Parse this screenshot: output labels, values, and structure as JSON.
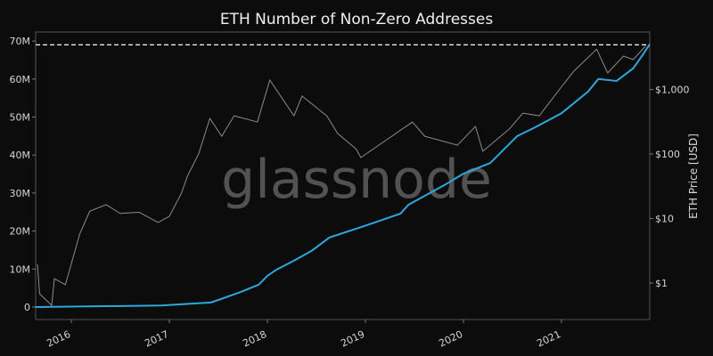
{
  "chart_data": {
    "type": "line",
    "title": "ETH Number of Non-Zero Addresses",
    "watermark": "glassnode",
    "xlabel": "",
    "x_ticks": [
      "2016",
      "2017",
      "2018",
      "2019",
      "2020",
      "2021"
    ],
    "y_left": {
      "label": "",
      "ticks": [
        "0",
        "10M",
        "20M",
        "30M",
        "40M",
        "50M",
        "60M",
        "70M"
      ],
      "tick_values": [
        0,
        10,
        20,
        30,
        40,
        50,
        60,
        70
      ],
      "unit": "millions",
      "range": [
        -3,
        73
      ]
    },
    "y_right": {
      "label": "ETH Price [USD]",
      "scale": "log",
      "ticks": [
        "$1",
        "$10",
        "$100",
        "$1,000"
      ],
      "tick_values": [
        1,
        10,
        100,
        1000
      ]
    },
    "reference_line": {
      "value_millions": 69,
      "style": "dashed",
      "color": "#ffffff"
    },
    "grid": false,
    "series": [
      {
        "axis": "left",
        "color": "#2ea8dc",
        "points": [
          [
            "2015-08-20",
            0
          ],
          [
            "2016-12-01",
            0.4
          ],
          [
            "2017-06-05",
            1.2
          ],
          [
            "2017-07-20",
            2.3
          ],
          [
            "2017-09-25",
            4.0
          ],
          [
            "2017-11-30",
            5.9
          ],
          [
            "2018-01-01",
            8.2
          ],
          [
            "2018-02-03",
            9.8
          ],
          [
            "2018-04-10",
            12.2
          ],
          [
            "2018-06-15",
            14.8
          ],
          [
            "2018-08-20",
            18.3
          ],
          [
            "2018-11-27",
            20.6
          ],
          [
            "2019-02-03",
            22.2
          ],
          [
            "2019-05-12",
            24.6
          ],
          [
            "2019-06-10",
            26.9
          ],
          [
            "2019-10-27",
            32.3
          ],
          [
            "2020-01-01",
            35.1
          ],
          [
            "2020-04-10",
            37.9
          ],
          [
            "2020-07-20",
            45.0
          ],
          [
            "2020-09-25",
            47.3
          ],
          [
            "2021-01-01",
            51.0
          ],
          [
            "2021-04-10",
            56.7
          ],
          [
            "2021-05-18",
            60.0
          ],
          [
            "2021-07-25",
            59.5
          ],
          [
            "2021-09-25",
            62.8
          ],
          [
            "2021-10-27",
            66.0
          ],
          [
            "2021-11-24",
            69.0
          ]
        ]
      },
      {
        "axis": "right",
        "color": "#8c8c8c",
        "points": [
          [
            "2015-08-28",
            1.95
          ],
          [
            "2015-09-05",
            0.68
          ],
          [
            "2015-10-20",
            0.45
          ],
          [
            "2015-10-30",
            1.17
          ],
          [
            "2015-12-10",
            0.94
          ],
          [
            "2016-02-01",
            5.7
          ],
          [
            "2016-03-10",
            13
          ],
          [
            "2016-05-10",
            16.4
          ],
          [
            "2016-07-01",
            12
          ],
          [
            "2016-09-10",
            12.5
          ],
          [
            "2016-11-20",
            8.7
          ],
          [
            "2017-01-01",
            10.8
          ],
          [
            "2017-02-15",
            24.7
          ],
          [
            "2017-03-10",
            46
          ],
          [
            "2017-04-20",
            100
          ],
          [
            "2017-06-01",
            356
          ],
          [
            "2017-07-15",
            188
          ],
          [
            "2017-08-30",
            390
          ],
          [
            "2017-11-25",
            313
          ],
          [
            "2018-01-10",
            1400
          ],
          [
            "2018-04-10",
            390
          ],
          [
            "2018-05-10",
            790
          ],
          [
            "2018-08-10",
            390
          ],
          [
            "2018-09-20",
            207
          ],
          [
            "2018-11-27",
            120
          ],
          [
            "2018-12-15",
            88
          ],
          [
            "2019-03-20",
            165
          ],
          [
            "2019-06-25",
            313
          ],
          [
            "2019-08-10",
            188
          ],
          [
            "2019-12-10",
            137
          ],
          [
            "2020-02-15",
            268
          ],
          [
            "2020-03-13",
            110
          ],
          [
            "2020-06-20",
            243
          ],
          [
            "2020-08-10",
            430
          ],
          [
            "2020-10-10",
            390
          ],
          [
            "2021-01-01",
            1100
          ],
          [
            "2021-02-15",
            1900
          ],
          [
            "2021-05-12",
            4200
          ],
          [
            "2021-06-22",
            1800
          ],
          [
            "2021-08-20",
            3300
          ],
          [
            "2021-09-25",
            2900
          ],
          [
            "2021-11-10",
            4700
          ]
        ]
      }
    ]
  }
}
